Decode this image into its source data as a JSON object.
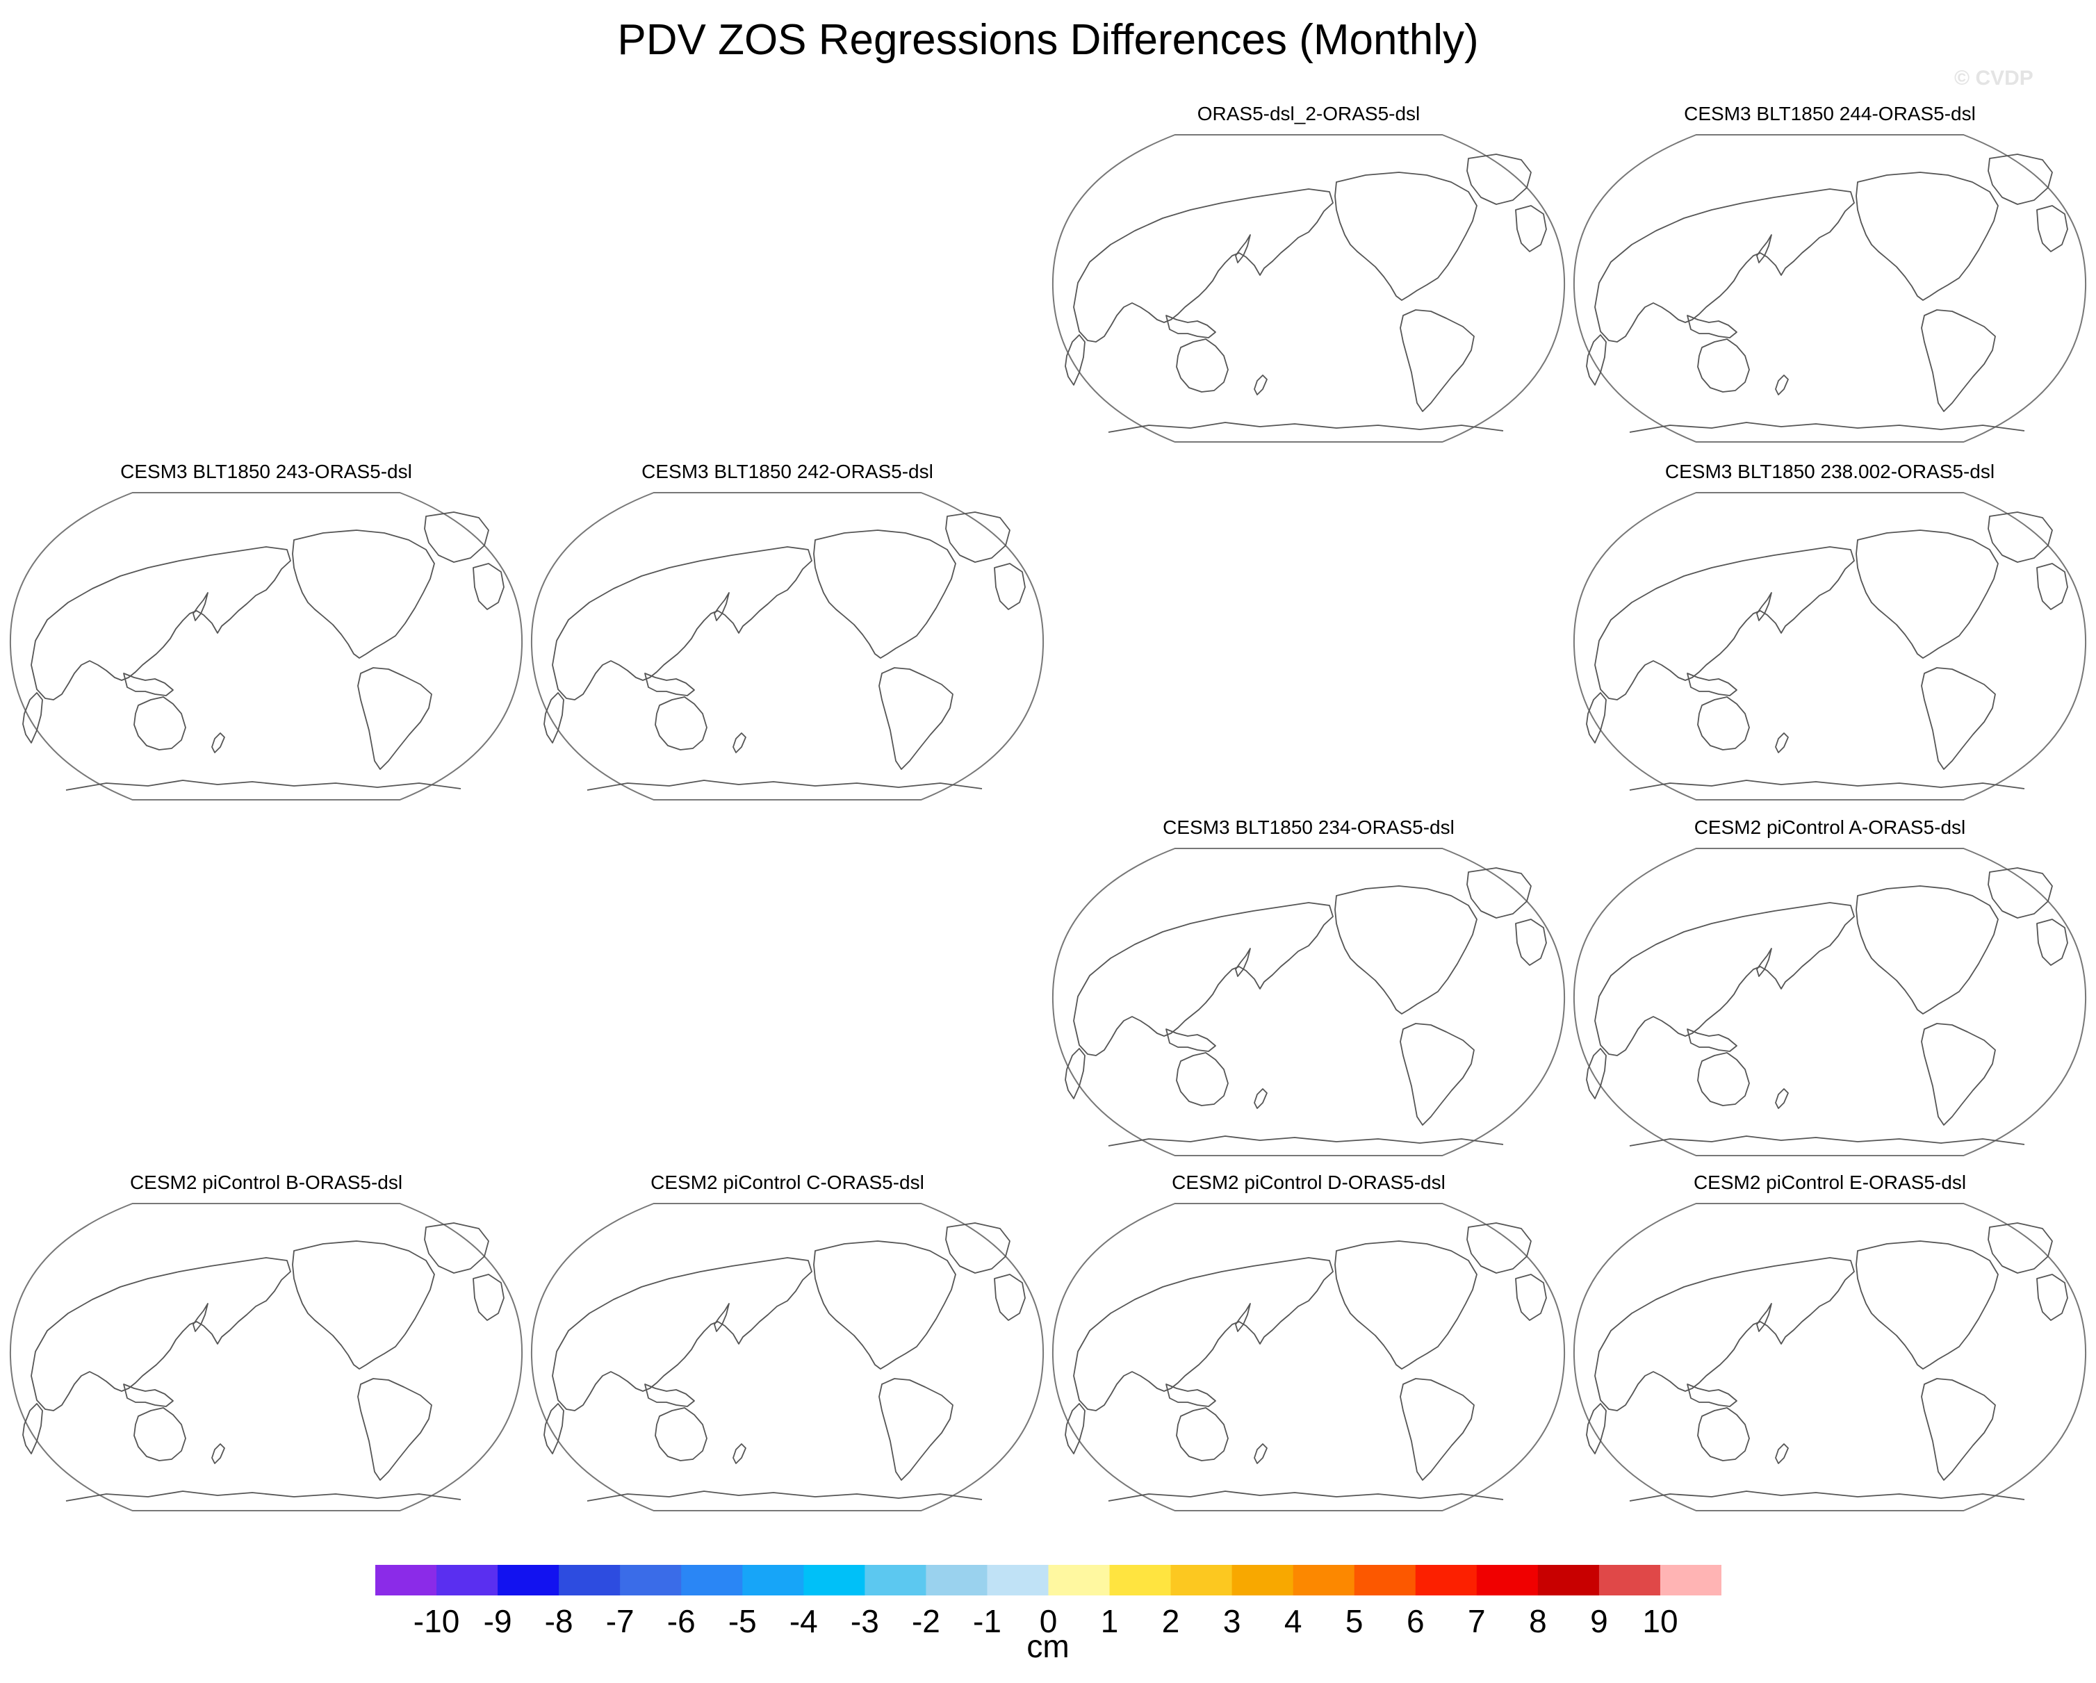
{
  "title": "PDV ZOS Regressions Differences (Monthly)",
  "watermark": "© CVDP",
  "colors": {
    "outline": "#777777",
    "coast": "#555555",
    "watermark": "#e4e4e4"
  },
  "panels": [
    {
      "id": "p1",
      "title": "ORAS5-dsl_2-ORAS5-dsl"
    },
    {
      "id": "p2",
      "title": "CESM3 BLT1850 244-ORAS5-dsl"
    },
    {
      "id": "p3",
      "title": "CESM3 BLT1850 243-ORAS5-dsl"
    },
    {
      "id": "p4",
      "title": "CESM3 BLT1850 242-ORAS5-dsl"
    },
    {
      "id": "p5",
      "title": "CESM3 BLT1850 238.002-ORAS5-dsl"
    },
    {
      "id": "p6",
      "title": "CESM3 BLT1850 234-ORAS5-dsl"
    },
    {
      "id": "p7",
      "title": "CESM2 piControl A-ORAS5-dsl"
    },
    {
      "id": "p8",
      "title": "CESM2 piControl B-ORAS5-dsl"
    },
    {
      "id": "p9",
      "title": "CESM2 piControl C-ORAS5-dsl"
    },
    {
      "id": "p10",
      "title": "CESM2 piControl D-ORAS5-dsl"
    },
    {
      "id": "p11",
      "title": "CESM2 piControl E-ORAS5-dsl"
    }
  ],
  "colorbar": {
    "units": "cm",
    "labels": [
      "-10",
      "-9",
      "-8",
      "-7",
      "-6",
      "-5",
      "-4",
      "-3",
      "-2",
      "-1",
      "0",
      "1",
      "2",
      "3",
      "4",
      "5",
      "6",
      "7",
      "8",
      "9",
      "10"
    ],
    "colors": [
      "#8b2be8",
      "#5a2ff0",
      "#1212f0",
      "#2d4ce0",
      "#3a6ce8",
      "#2a86f5",
      "#17a5f8",
      "#00c0f8",
      "#5cc8f0",
      "#9ad2ee",
      "#c0e2f6",
      "#fff8a0",
      "#ffe440",
      "#fcc820",
      "#f8a800",
      "#fc8800",
      "#fc5800",
      "#fc2000",
      "#f00000",
      "#c80000",
      "#e04848",
      "#ffb4b4"
    ]
  }
}
